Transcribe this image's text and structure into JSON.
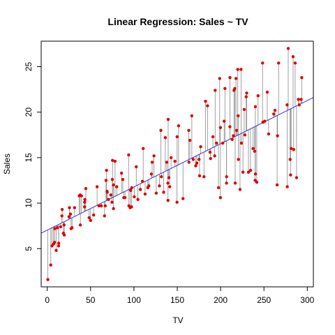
{
  "chart_data": {
    "type": "scatter",
    "title": "Linear Regression: Sales ~ TV",
    "xlabel": "TV",
    "ylabel": "Sales",
    "xlim": [
      -7,
      307
    ],
    "ylim": [
      0.8,
      27.8
    ],
    "x_ticks": [
      0,
      50,
      100,
      150,
      200,
      250,
      300
    ],
    "y_ticks": [
      5,
      10,
      15,
      20,
      25
    ],
    "grid": false,
    "legend": "none",
    "regression_line": {
      "intercept": 7.03,
      "slope": 0.0475,
      "color": "#3333cc"
    },
    "point_color": "#dd0000",
    "residual_color": "#888888",
    "points": [
      [
        0.7,
        1.6
      ],
      [
        4.1,
        3.2
      ],
      [
        5.4,
        5.3
      ],
      [
        7.3,
        5.5
      ],
      [
        8.4,
        5.7
      ],
      [
        8.6,
        7.2
      ],
      [
        10.3,
        4.8
      ],
      [
        11.7,
        7.3
      ],
      [
        13.1,
        5.3
      ],
      [
        13.2,
        5.6
      ],
      [
        15.5,
        7.4
      ],
      [
        16.9,
        8.6
      ],
      [
        17.2,
        9.3
      ],
      [
        18.7,
        6.7
      ],
      [
        19.4,
        7.6
      ],
      [
        19.6,
        6.5
      ],
      [
        25.1,
        8.5
      ],
      [
        25.6,
        9.5
      ],
      [
        26.8,
        8.8
      ],
      [
        27.5,
        7.2
      ],
      [
        28.6,
        7.3
      ],
      [
        31.5,
        9.5
      ],
      [
        36.9,
        10.8
      ],
      [
        38.0,
        10.9
      ],
      [
        38.2,
        7.6
      ],
      [
        39.5,
        10.8
      ],
      [
        43.0,
        9.6
      ],
      [
        43.1,
        10.1
      ],
      [
        43.4,
        10.4
      ],
      [
        44.5,
        11.6
      ],
      [
        48.3,
        8.4
      ],
      [
        50.0,
        8.1
      ],
      [
        53.5,
        8.7
      ],
      [
        57.5,
        11.8
      ],
      [
        59.6,
        9.7
      ],
      [
        62.3,
        9.7
      ],
      [
        66.1,
        8.6
      ],
      [
        66.9,
        9.7
      ],
      [
        67.8,
        12.5
      ],
      [
        68.4,
        13.6
      ],
      [
        69.0,
        11.3
      ],
      [
        69.2,
        11.2
      ],
      [
        70.6,
        10.4
      ],
      [
        73.4,
        10.9
      ],
      [
        74.7,
        10.1
      ],
      [
        75.1,
        12.6
      ],
      [
        75.3,
        14.7
      ],
      [
        76.3,
        12.0
      ],
      [
        76.4,
        9.4
      ],
      [
        78.2,
        14.6
      ],
      [
        80.2,
        11.8
      ],
      [
        85.7,
        13.3
      ],
      [
        87.2,
        12.6
      ],
      [
        88.3,
        10.6
      ],
      [
        89.7,
        10.6
      ],
      [
        93.9,
        15.3
      ],
      [
        94.2,
        9.7
      ],
      [
        95.7,
        9.5
      ],
      [
        96.2,
        11.4
      ],
      [
        97.2,
        9.6
      ],
      [
        97.5,
        11.7
      ],
      [
        100.4,
        10.7
      ],
      [
        102.7,
        14.0
      ],
      [
        104.6,
        10.4
      ],
      [
        107.4,
        11.5
      ],
      [
        109.8,
        12.4
      ],
      [
        110.7,
        16.0
      ],
      [
        112.9,
        11.0
      ],
      [
        116.0,
        11.7
      ],
      [
        117.2,
        11.9
      ],
      [
        120.2,
        13.2
      ],
      [
        121.0,
        14.5
      ],
      [
        123.1,
        15.2
      ],
      [
        125.7,
        11.1
      ],
      [
        129.4,
        11.9
      ],
      [
        131.1,
        18.0
      ],
      [
        131.7,
        12.9
      ],
      [
        134.3,
        11.2
      ],
      [
        136.2,
        17.2
      ],
      [
        137.9,
        14.5
      ],
      [
        139.2,
        12.2
      ],
      [
        139.3,
        10.3
      ],
      [
        139.5,
        19.2
      ],
      [
        140.3,
        12.8
      ],
      [
        141.3,
        11.8
      ],
      [
        142.9,
        15.0
      ],
      [
        147.3,
        14.6
      ],
      [
        149.7,
        10.1
      ],
      [
        149.8,
        17.3
      ],
      [
        151.5,
        18.5
      ],
      [
        156.6,
        10.5
      ],
      [
        163.3,
        18.0
      ],
      [
        163.5,
        14.5
      ],
      [
        164.5,
        16.9
      ],
      [
        166.8,
        19.6
      ],
      [
        168.4,
        14.8
      ],
      [
        171.3,
        14.1
      ],
      [
        172.5,
        14.4
      ],
      [
        175.1,
        14.8
      ],
      [
        175.7,
        13.0
      ],
      [
        177.0,
        16.2
      ],
      [
        180.8,
        12.9
      ],
      [
        182.6,
        21.2
      ],
      [
        184.9,
        20.7
      ],
      [
        187.8,
        15.6
      ],
      [
        188.4,
        14.9
      ],
      [
        191.1,
        17.3
      ],
      [
        193.2,
        15.2
      ],
      [
        193.7,
        22.4
      ],
      [
        195.4,
        16.6
      ],
      [
        197.6,
        11.7
      ],
      [
        198.9,
        23.7
      ],
      [
        199.8,
        10.6
      ],
      [
        199.8,
        18.3
      ],
      [
        202.5,
        16.6
      ],
      [
        204.1,
        19.0
      ],
      [
        205.0,
        22.6
      ],
      [
        206.8,
        12.2
      ],
      [
        206.9,
        12.9
      ],
      [
        210.7,
        18.4
      ],
      [
        210.8,
        23.8
      ],
      [
        213.4,
        17.0
      ],
      [
        214.7,
        17.4
      ],
      [
        215.4,
        22.4
      ],
      [
        216.4,
        22.6
      ],
      [
        216.8,
        12.2
      ],
      [
        218.4,
        18.0
      ],
      [
        219.8,
        24.7
      ],
      [
        220.3,
        19.6
      ],
      [
        220.5,
        14.8
      ],
      [
        222.4,
        11.5
      ],
      [
        224.0,
        16.6
      ],
      [
        225.8,
        13.4
      ],
      [
        227.2,
        20.3
      ],
      [
        228.0,
        17.5
      ],
      [
        229.5,
        21.7
      ],
      [
        230.1,
        22.1
      ],
      [
        232.1,
        13.4
      ],
      [
        234.5,
        13.6
      ],
      [
        237.4,
        16.0
      ],
      [
        239.3,
        15.7
      ],
      [
        239.8,
        12.5
      ],
      [
        240.1,
        13.2
      ],
      [
        240.1,
        20.6
      ],
      [
        241.7,
        12.3
      ],
      [
        243.2,
        21.8
      ],
      [
        248.4,
        25.4
      ],
      [
        248.8,
        18.9
      ],
      [
        250.9,
        19.0
      ],
      [
        253.8,
        22.2
      ],
      [
        255.4,
        17.6
      ],
      [
        261.3,
        19.8
      ],
      [
        262.7,
        20.2
      ],
      [
        265.2,
        12.0
      ],
      [
        265.6,
        17.4
      ],
      [
        266.9,
        25.4
      ],
      [
        276.7,
        20.8
      ],
      [
        276.9,
        11.8
      ],
      [
        280.2,
        14.8
      ],
      [
        281.4,
        16.0
      ],
      [
        283.6,
        26.1
      ],
      [
        284.3,
        15.9
      ],
      [
        286.0,
        25.4
      ],
      [
        287.6,
        12.8
      ],
      [
        289.7,
        21.4
      ],
      [
        290.7,
        20.8
      ],
      [
        293.6,
        23.8
      ],
      [
        292.9,
        21.4
      ],
      [
        280.7,
        13.1
      ],
      [
        278.0,
        27.0
      ],
      [
        223.6,
        24.7
      ],
      [
        217.7,
        23.7
      ]
    ]
  }
}
